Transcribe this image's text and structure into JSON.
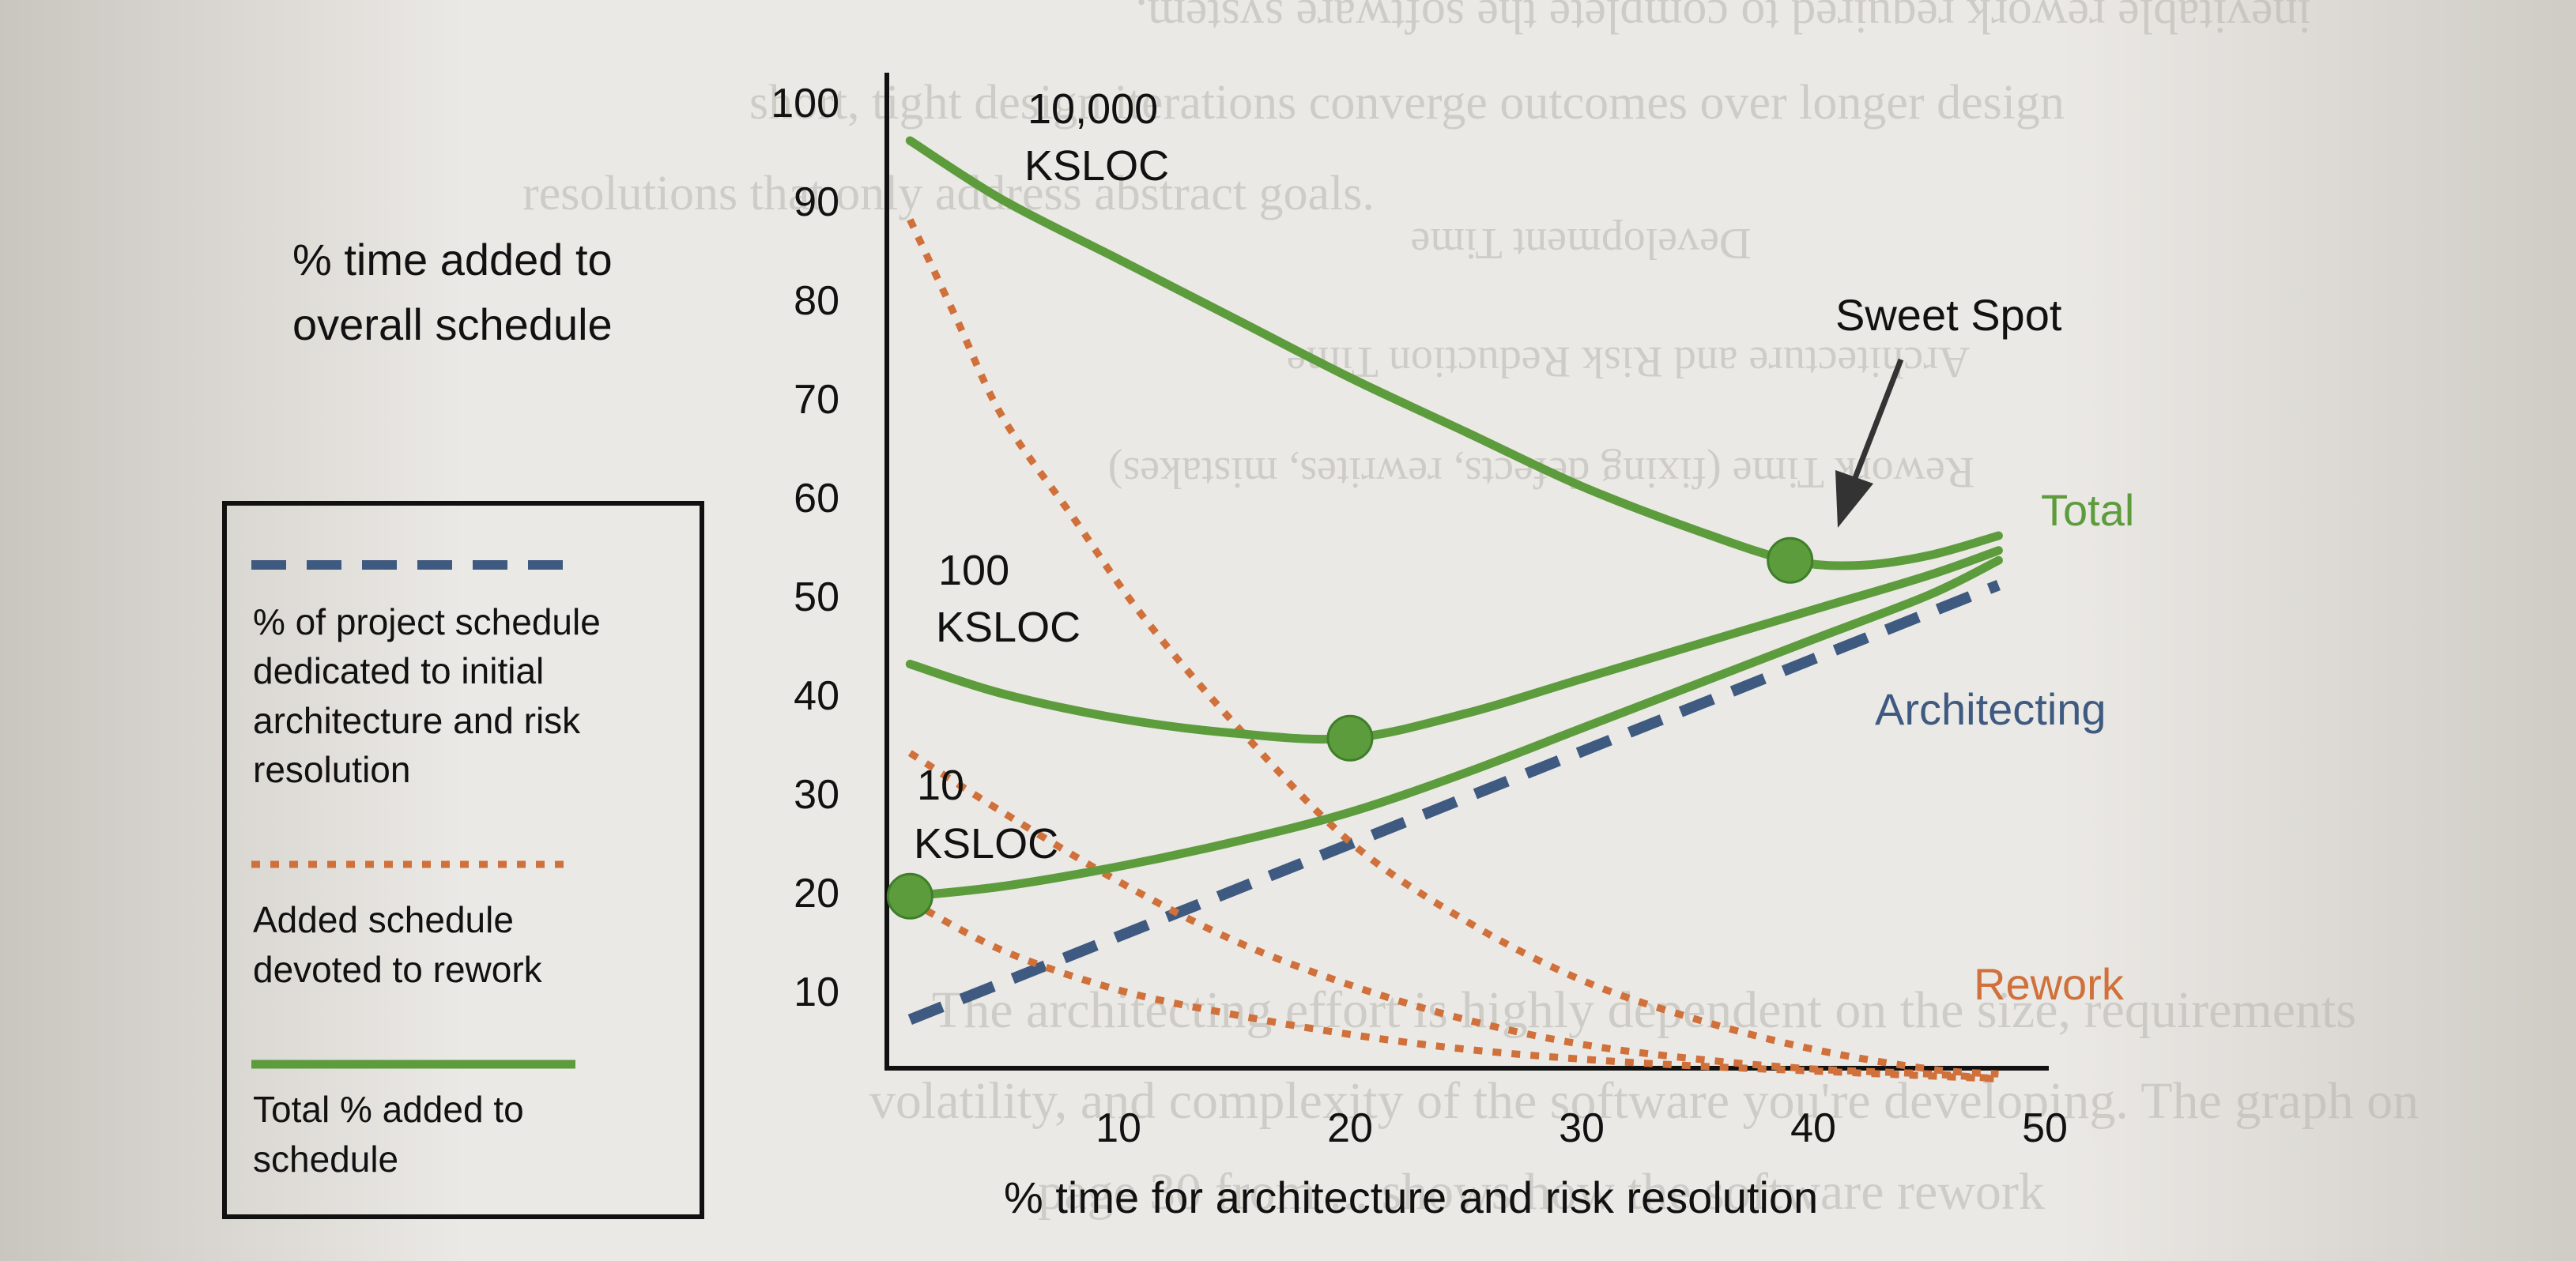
{
  "chart_data": {
    "type": "line",
    "title": "",
    "xlabel": "% time for architecture and risk resolution",
    "ylabel": "% time added to overall schedule",
    "xlim": [
      0,
      50
    ],
    "ylim": [
      0,
      100
    ],
    "x_ticks": [
      10,
      20,
      30,
      40,
      50
    ],
    "y_ticks": [
      10,
      20,
      30,
      40,
      50,
      60,
      70,
      80,
      90,
      100
    ],
    "colors": {
      "architecting": "#3f5a80",
      "rework": "#d0703a",
      "total": "#5d9c3d"
    },
    "series": [
      {
        "name": "Architecting",
        "kind": "architecting",
        "x": [
          1,
          48
        ],
        "y": [
          7,
          51
        ]
      },
      {
        "kind": "total",
        "size_label": "10,000 KSLOC",
        "x": [
          1,
          5,
          10,
          15,
          20,
          25,
          30,
          35,
          39,
          42,
          45,
          48
        ],
        "y": [
          96,
          90,
          84,
          78,
          72,
          66.5,
          61,
          56.5,
          53.5,
          53,
          54,
          56
        ]
      },
      {
        "kind": "rework",
        "x": [
          1,
          3,
          5,
          8,
          11,
          15,
          20,
          25,
          30,
          35,
          40,
          45,
          48
        ],
        "y": [
          88,
          78,
          68,
          58,
          48,
          37,
          25,
          17,
          11,
          7,
          4,
          2,
          1.5
        ]
      },
      {
        "kind": "total",
        "size_label": "100 KSLOC",
        "x": [
          1,
          5,
          10,
          15,
          20,
          25,
          30,
          35,
          40,
          45,
          48
        ],
        "y": [
          43,
          40,
          37.5,
          36,
          35.5,
          38,
          41.5,
          45,
          48.5,
          52,
          54.5
        ]
      },
      {
        "kind": "rework",
        "x": [
          1,
          5,
          10,
          15,
          20,
          25,
          30,
          35,
          40,
          45,
          48
        ],
        "y": [
          34,
          28,
          21,
          15,
          10.5,
          7,
          4.5,
          3,
          2,
          1.5,
          1
        ]
      },
      {
        "kind": "total",
        "size_label": "10 KSLOC",
        "x": [
          1,
          5,
          10,
          15,
          20,
          25,
          30,
          35,
          40,
          45,
          48
        ],
        "y": [
          19.5,
          20.5,
          22.5,
          25,
          28,
          32,
          36.5,
          41,
          45.5,
          50,
          53.5
        ]
      },
      {
        "kind": "rework",
        "x": [
          1,
          5,
          10,
          15,
          20,
          25,
          30,
          35,
          40,
          45,
          48
        ],
        "y": [
          19,
          14,
          10,
          7.5,
          5.5,
          4,
          3,
          2.3,
          1.8,
          1.3,
          1
        ]
      }
    ],
    "sweet_spots": [
      {
        "x": 1,
        "y": 19.5
      },
      {
        "x": 20,
        "y": 35.5
      },
      {
        "x": 39,
        "y": 53.5
      }
    ],
    "labels": {
      "total": "Total",
      "architecting": "Architecting",
      "rework": "Rework",
      "ylabel_line1": "% time added to",
      "ylabel_line2": "overall schedule",
      "ksloc_10000_a": "10,000",
      "ksloc_10000_b": "KSLOC",
      "ksloc_100_a": "100",
      "ksloc_100_b": "KSLOC",
      "ksloc_10_a": "10",
      "ksloc_10_b": "KSLOC",
      "sweet_spot": "Sweet Spot"
    },
    "legend": {
      "placement": "left",
      "items": [
        {
          "kind": "architecting",
          "lines": [
            "% of project schedule",
            "dedicated to initial",
            "architecture and risk",
            "resolution"
          ]
        },
        {
          "kind": "rework",
          "lines": [
            "Added schedule",
            "devoted to rework"
          ]
        },
        {
          "kind": "total",
          "lines": [
            "Total % added to",
            "schedule"
          ]
        }
      ]
    }
  },
  "background_text": [
    "inevitable rework required to complete the software system.",
    "short, tight design iterations converge outcomes over longer design",
    "resolutions that only address abstract goals.",
    "Development Time",
    "Architecture and Risk Reduction Time",
    "Rework Time (fixing defects, rewrites, mistakes)",
    "The architecting effort is highly dependent on the size, requirements",
    "volatility, and complexity of the software you're developing. The graph on",
    "page 30 from ... shows how the software rework"
  ]
}
